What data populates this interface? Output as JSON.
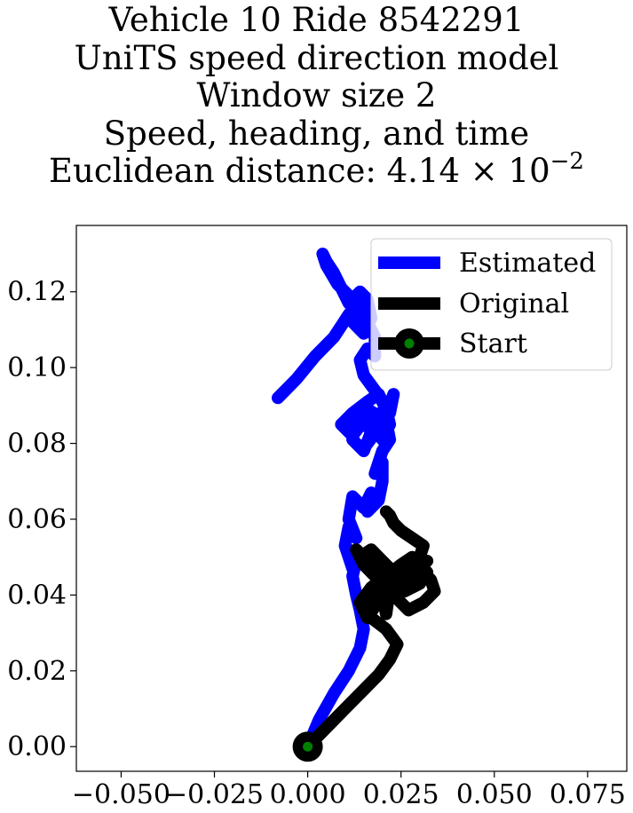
{
  "chart_data": {
    "type": "line",
    "title_lines": [
      "Vehicle 10 Ride 8542291",
      "UniTS speed direction model",
      "Window size 2",
      "Speed, heading, and time"
    ],
    "title_distance_prefix": "Euclidean distance: ",
    "title_distance_mantissa": "4.14",
    "title_distance_times": "×",
    "title_distance_base": "10",
    "title_distance_exponent": "−2",
    "xlabel": "",
    "ylabel": "",
    "xlim": [
      -0.062,
      0.0855
    ],
    "ylim": [
      -0.0065,
      0.1375
    ],
    "x_ticks": [
      -0.05,
      -0.025,
      0.0,
      0.025,
      0.05,
      0.075
    ],
    "x_tick_labels": [
      "−0.050",
      "−0.025",
      "0.000",
      "0.025",
      "0.050",
      "0.075"
    ],
    "y_ticks": [
      0.0,
      0.02,
      0.04,
      0.06,
      0.08,
      0.1,
      0.12
    ],
    "y_tick_labels": [
      "0.00",
      "0.02",
      "0.04",
      "0.06",
      "0.08",
      "0.10",
      "0.12"
    ],
    "grid": false,
    "legend_position": "top-right",
    "series": [
      {
        "name": "Estimated",
        "color": "#0000ff",
        "x": [
          0.0,
          0.003,
          0.007,
          0.011,
          0.014,
          0.015,
          0.014,
          0.013,
          0.012,
          0.013,
          0.011,
          0.012,
          0.01,
          0.011,
          0.013,
          0.011,
          0.012,
          0.015,
          0.017,
          0.016,
          0.019,
          0.02,
          0.02,
          0.018,
          0.02,
          0.022,
          0.021,
          0.016,
          0.012,
          0.012,
          0.015,
          0.017,
          0.015,
          0.012,
          0.009,
          0.012,
          0.016,
          0.019,
          0.021,
          0.022,
          0.02,
          0.017,
          0.022,
          0.023,
          0.022,
          0.019,
          0.016,
          0.019,
          0.021,
          0.018,
          0.015,
          0.014,
          0.016,
          0.018,
          0.018,
          0.016,
          0.013,
          0.012,
          0.015,
          0.017,
          0.016,
          0.014,
          0.011,
          0.009,
          0.007,
          0.005,
          0.004,
          0.005,
          0.008,
          0.011,
          0.012,
          0.014,
          0.011,
          0.007,
          0.002,
          -0.003,
          -0.008
        ],
        "y": [
          0.0,
          0.007,
          0.014,
          0.02,
          0.026,
          0.031,
          0.036,
          0.04,
          0.045,
          0.049,
          0.052,
          0.047,
          0.053,
          0.058,
          0.055,
          0.06,
          0.066,
          0.063,
          0.067,
          0.062,
          0.065,
          0.07,
          0.075,
          0.072,
          0.078,
          0.081,
          0.086,
          0.089,
          0.085,
          0.081,
          0.078,
          0.083,
          0.086,
          0.082,
          0.085,
          0.088,
          0.091,
          0.093,
          0.089,
          0.085,
          0.081,
          0.086,
          0.09,
          0.093,
          0.088,
          0.084,
          0.08,
          0.086,
          0.09,
          0.094,
          0.098,
          0.102,
          0.105,
          0.103,
          0.108,
          0.112,
          0.116,
          0.112,
          0.109,
          0.113,
          0.118,
          0.12,
          0.117,
          0.121,
          0.125,
          0.128,
          0.13,
          0.127,
          0.122,
          0.119,
          0.115,
          0.118,
          0.114,
          0.108,
          0.103,
          0.097,
          0.092
        ]
      },
      {
        "name": "Original",
        "color": "#000000",
        "x": [
          0.0,
          0.005,
          0.01,
          0.015,
          0.019,
          0.022,
          0.024,
          0.021,
          0.017,
          0.015,
          0.019,
          0.023,
          0.027,
          0.03,
          0.032,
          0.029,
          0.025,
          0.021,
          0.018,
          0.016,
          0.014,
          0.017,
          0.021,
          0.025,
          0.028,
          0.03,
          0.033,
          0.034,
          0.031,
          0.027,
          0.024,
          0.022,
          0.021,
          0.02,
          0.023,
          0.026,
          0.029,
          0.032,
          0.03,
          0.026,
          0.022,
          0.018,
          0.015,
          0.013,
          0.015,
          0.018,
          0.021,
          0.024,
          0.022,
          0.019,
          0.016,
          0.014,
          0.017,
          0.02,
          0.023,
          0.026,
          0.028,
          0.03,
          0.031,
          0.028,
          0.025,
          0.023,
          0.022,
          0.021
        ],
        "y": [
          0.0,
          0.005,
          0.01,
          0.015,
          0.019,
          0.023,
          0.027,
          0.031,
          0.034,
          0.038,
          0.041,
          0.043,
          0.045,
          0.048,
          0.049,
          0.046,
          0.043,
          0.04,
          0.037,
          0.034,
          0.038,
          0.042,
          0.045,
          0.048,
          0.05,
          0.047,
          0.044,
          0.041,
          0.038,
          0.036,
          0.039,
          0.042,
          0.035,
          0.04,
          0.044,
          0.047,
          0.049,
          0.046,
          0.043,
          0.041,
          0.044,
          0.047,
          0.05,
          0.052,
          0.048,
          0.045,
          0.042,
          0.039,
          0.042,
          0.045,
          0.048,
          0.05,
          0.052,
          0.049,
          0.046,
          0.043,
          0.047,
          0.05,
          0.053,
          0.055,
          0.057,
          0.059,
          0.061,
          0.062
        ]
      }
    ],
    "start_marker": {
      "name": "Start",
      "x": 0.0,
      "y": 0.0,
      "outer_color": "#000000",
      "inner_color": "#008000"
    }
  }
}
